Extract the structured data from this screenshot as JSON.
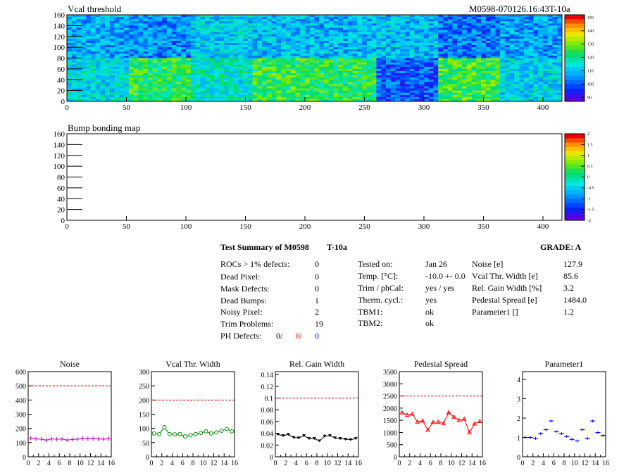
{
  "header": {
    "title": "Vcal threshold",
    "module_id": "M0598-070126.16:43T-10a"
  },
  "colors": {
    "red": "#ff0000",
    "blue": "#0000ff",
    "magenta": "#cc00cc",
    "green": "#008800",
    "black": "#000000"
  },
  "chart_data": [
    {
      "type": "heatmap",
      "title": "Vcal threshold",
      "xlim": [
        0,
        416
      ],
      "ylim": [
        0,
        160
      ],
      "x_ticks": [
        "0",
        "50",
        "100",
        "150",
        "200",
        "250",
        "300",
        "350",
        "400"
      ],
      "y_ticks": [
        "0",
        "20",
        "40",
        "60",
        "80",
        "100",
        "120",
        "140",
        "160"
      ],
      "z_ticks": [
        "90",
        "100",
        "110",
        "120",
        "130",
        "140",
        "150"
      ],
      "zlim": [
        87,
        152
      ],
      "roc_means_top": [
        107,
        104,
        111,
        109,
        108,
        109,
        101,
        106
      ],
      "roc_means_bottom": [
        113,
        124,
        116,
        125,
        123,
        99,
        126,
        112
      ]
    },
    {
      "type": "heatmap",
      "title": "Bump bonding map",
      "xlim": [
        0,
        416
      ],
      "ylim": [
        0,
        160
      ],
      "x_ticks": [
        "0",
        "50",
        "100",
        "150",
        "200",
        "250",
        "300",
        "350",
        "400"
      ],
      "y_ticks": [
        "0",
        "20",
        "40",
        "60",
        "80",
        "100",
        "120",
        "140",
        "160"
      ],
      "z_ticks": [
        "-2",
        "-1.5",
        "-1",
        "-0.5",
        "0",
        "0.5",
        "1",
        "1.5",
        "2"
      ],
      "zlim": [
        -2,
        2
      ]
    },
    {
      "type": "line",
      "title": "Noise",
      "x": [
        0,
        1,
        2,
        3,
        4,
        5,
        6,
        7,
        8,
        9,
        10,
        11,
        12,
        13,
        14,
        15
      ],
      "values": [
        132,
        126,
        124,
        118,
        126,
        124,
        125,
        118,
        122,
        124,
        130,
        127,
        128,
        126,
        124,
        128
      ],
      "ylim": [
        0,
        600
      ],
      "y_ticks": [
        "0",
        "100",
        "200",
        "300",
        "400",
        "500",
        "600"
      ],
      "limit": 500
    },
    {
      "type": "line",
      "title": "Vcal Thr. Width",
      "x": [
        0,
        1,
        2,
        3,
        4,
        5,
        6,
        7,
        8,
        9,
        10,
        11,
        12,
        13,
        14,
        15
      ],
      "values": [
        82,
        80,
        104,
        80,
        79,
        80,
        72,
        76,
        80,
        84,
        90,
        82,
        86,
        92,
        98,
        90
      ],
      "ylim": [
        0,
        300
      ],
      "y_ticks": [
        "0",
        "50",
        "100",
        "150",
        "200",
        "250",
        "300"
      ],
      "limit": 200
    },
    {
      "type": "line",
      "title": "Rel. Gain Width",
      "x": [
        0,
        1,
        2,
        3,
        4,
        5,
        6,
        7,
        8,
        9,
        10,
        11,
        12,
        13,
        14,
        15
      ],
      "values": [
        0.038,
        0.036,
        0.038,
        0.033,
        0.032,
        0.036,
        0.031,
        0.031,
        0.027,
        0.035,
        0.036,
        0.032,
        0.031,
        0.03,
        0.029,
        0.031
      ],
      "ylim": [
        0,
        0.145
      ],
      "y_ticks": [
        "0",
        "0.02",
        "0.04",
        "0.06",
        "0.08",
        "0.1",
        "0.12",
        "0.14"
      ],
      "limit": 0.1
    },
    {
      "type": "line",
      "title": "Pedestal Spread",
      "x": [
        0,
        1,
        2,
        3,
        4,
        5,
        6,
        7,
        8,
        9,
        10,
        11,
        12,
        13,
        14,
        15
      ],
      "values": [
        1820,
        1720,
        1760,
        1440,
        1480,
        1100,
        1420,
        1430,
        1370,
        1820,
        1640,
        1500,
        1560,
        1000,
        1360,
        1460
      ],
      "ylim": [
        0,
        3500
      ],
      "y_ticks": [
        "0",
        "500",
        "1000",
        "1500",
        "2000",
        "2500",
        "3000",
        "3500"
      ],
      "limit": 2500
    },
    {
      "type": "scatter",
      "title": "Parameter1",
      "x": [
        0,
        1,
        2,
        3,
        4,
        5,
        6,
        7,
        8,
        9,
        10,
        11,
        12,
        13,
        14,
        15
      ],
      "values": [
        1.0,
        1.0,
        0.95,
        1.2,
        1.4,
        1.85,
        1.3,
        1.2,
        1.05,
        0.9,
        0.82,
        1.4,
        0.95,
        1.85,
        1.25,
        1.1
      ],
      "ylim": [
        0,
        4.4
      ],
      "y_ticks": [
        "0",
        "1",
        "2",
        "3",
        "4"
      ]
    }
  ],
  "summary": {
    "title": "Test Summary of M0598",
    "temp_tag": "T-10a",
    "grade": "GRADE:  A",
    "left_rows": [
      {
        "label": "ROCs > 1% defects:",
        "value": "0"
      },
      {
        "label": "Dead Pixel:",
        "value": "0"
      },
      {
        "label": "Mask Defects:",
        "value": "0"
      },
      {
        "label": "Dead Bumps:",
        "value": "1"
      },
      {
        "label": "Noisy Pixel:",
        "value": "2"
      },
      {
        "label": "Trim Problems:",
        "value": "19"
      }
    ],
    "ph_label": "PH Defects:",
    "ph_values": [
      "0/",
      "0/",
      "0"
    ],
    "mid_rows": [
      {
        "label": "Tested on:",
        "value": "Jan 26"
      },
      {
        "label": "Temp. [°C]:",
        "value": "-10.0 +- 0.0"
      },
      {
        "label": "Trim / phCal:",
        "value": "yes / yes"
      },
      {
        "label": "Therm. cycl.:",
        "value": "yes"
      },
      {
        "label": "TBM1:",
        "value": "ok"
      },
      {
        "label": "TBM2:",
        "value": "ok"
      }
    ],
    "right_rows": [
      {
        "label": "Noise [e]",
        "value": "127.9"
      },
      {
        "label": "Vcal Thr. Width [e]",
        "value": "85.6"
      },
      {
        "label": "Rel. Gain Width [%]",
        "value": "3.2"
      },
      {
        "label": "Pedestal Spread [e]",
        "value": "1484.0"
      },
      {
        "label": "Parameter1 []",
        "value": "1.2"
      }
    ]
  }
}
